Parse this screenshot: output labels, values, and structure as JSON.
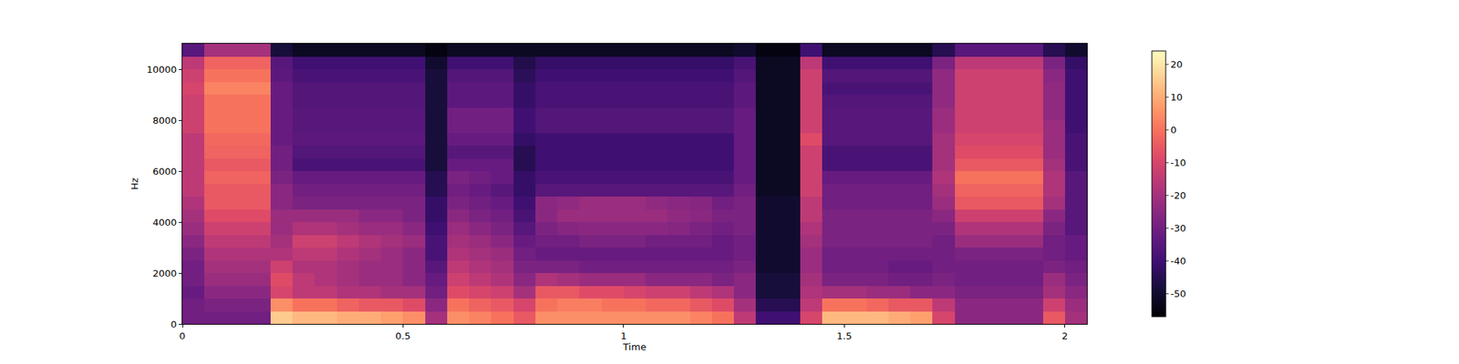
{
  "chart_data": {
    "type": "heatmap",
    "x_label": "Time",
    "y_label": "Hz",
    "xlim": [
      0,
      2.05
    ],
    "xticks": [
      0,
      0.5,
      1,
      1.5,
      2
    ],
    "ylim": [
      0,
      11000
    ],
    "yticks": [
      0,
      2000,
      4000,
      6000,
      8000,
      10000
    ],
    "colorbar": {
      "range": [
        -57,
        24
      ],
      "ticks": [
        -50,
        -40,
        -30,
        -20,
        -10,
        0,
        10,
        20
      ]
    },
    "x": [
      0.025,
      0.075,
      0.125,
      0.175,
      0.225,
      0.275,
      0.325,
      0.375,
      0.425,
      0.475,
      0.525,
      0.575,
      0.625,
      0.675,
      0.725,
      0.775,
      0.825,
      0.875,
      0.925,
      0.975,
      1.025,
      1.075,
      1.125,
      1.175,
      1.225,
      1.275,
      1.325,
      1.375,
      1.425,
      1.475,
      1.525,
      1.575,
      1.625,
      1.675,
      1.725,
      1.775,
      1.825,
      1.875,
      1.925,
      1.975,
      2.025
    ],
    "y": [
      250,
      750,
      1250,
      1750,
      2250,
      2750,
      3250,
      3750,
      4250,
      4750,
      5250,
      5750,
      6250,
      6750,
      7250,
      7750,
      8250,
      8750,
      9250,
      9750,
      10250,
      10750
    ],
    "cells": [
      [
        -30,
        -30,
        -30,
        -30,
        15,
        12,
        12,
        10,
        10,
        8,
        5,
        -20,
        5,
        3,
        0,
        -5,
        5,
        5,
        5,
        5,
        5,
        5,
        5,
        3,
        0,
        -15,
        -40,
        -40,
        -10,
        12,
        12,
        12,
        10,
        8,
        -10,
        -25,
        -25,
        -25,
        -25,
        -5,
        -20
      ],
      [
        -30,
        -28,
        -28,
        -28,
        5,
        0,
        0,
        -3,
        -5,
        -5,
        -8,
        -25,
        0,
        -3,
        -5,
        -10,
        0,
        2,
        2,
        0,
        0,
        -2,
        -2,
        -5,
        -8,
        -20,
        -45,
        -45,
        -15,
        0,
        0,
        -2,
        -5,
        -5,
        -15,
        -25,
        -25,
        -25,
        -25,
        -12,
        -22
      ],
      [
        -32,
        -25,
        -25,
        -25,
        -10,
        -15,
        -15,
        -18,
        -18,
        -20,
        -20,
        -30,
        -8,
        -10,
        -12,
        -20,
        -5,
        -5,
        -8,
        -8,
        -10,
        -12,
        -12,
        -15,
        -18,
        -25,
        -48,
        -48,
        -18,
        -20,
        -20,
        -22,
        -22,
        -25,
        -25,
        -28,
        -28,
        -28,
        -28,
        -20,
        -25
      ],
      [
        -30,
        -22,
        -22,
        -22,
        -8,
        -15,
        -18,
        -20,
        -22,
        -22,
        -25,
        -32,
        -12,
        -15,
        -18,
        -25,
        -18,
        -20,
        -22,
        -22,
        -22,
        -25,
        -25,
        -25,
        -28,
        -25,
        -48,
        -48,
        -20,
        -28,
        -28,
        -28,
        -30,
        -30,
        -28,
        -30,
        -30,
        -30,
        -30,
        -22,
        -28
      ],
      [
        -30,
        -20,
        -20,
        -20,
        -12,
        -18,
        -18,
        -20,
        -22,
        -22,
        -25,
        -35,
        -15,
        -18,
        -20,
        -28,
        -28,
        -28,
        -30,
        -30,
        -30,
        -30,
        -30,
        -30,
        -30,
        -28,
        -50,
        -50,
        -22,
        -30,
        -30,
        -30,
        -32,
        -32,
        -30,
        -30,
        -30,
        -30,
        -30,
        -28,
        -30
      ],
      [
        -28,
        -18,
        -18,
        -18,
        -18,
        -15,
        -15,
        -18,
        -20,
        -22,
        -25,
        -38,
        -18,
        -20,
        -22,
        -30,
        -32,
        -32,
        -32,
        -32,
        -32,
        -32,
        -32,
        -32,
        -32,
        -30,
        -50,
        -50,
        -22,
        -30,
        -30,
        -30,
        -30,
        -30,
        -30,
        -28,
        -28,
        -28,
        -28,
        -30,
        -32
      ],
      [
        -25,
        -15,
        -15,
        -15,
        -20,
        -12,
        -12,
        -15,
        -18,
        -20,
        -22,
        -38,
        -20,
        -22,
        -25,
        -32,
        -30,
        -30,
        -28,
        -28,
        -28,
        -30,
        -30,
        -30,
        -32,
        -30,
        -50,
        -50,
        -20,
        -28,
        -28,
        -28,
        -28,
        -28,
        -30,
        -22,
        -22,
        -22,
        -22,
        -30,
        -32
      ],
      [
        -22,
        -12,
        -12,
        -12,
        -22,
        -18,
        -18,
        -20,
        -22,
        -22,
        -25,
        -40,
        -22,
        -25,
        -28,
        -35,
        -28,
        -26,
        -25,
        -25,
        -25,
        -25,
        -26,
        -28,
        -30,
        -28,
        -50,
        -50,
        -18,
        -28,
        -28,
        -28,
        -28,
        -28,
        -28,
        -18,
        -18,
        -18,
        -18,
        -28,
        -35
      ],
      [
        -20,
        -8,
        -8,
        -8,
        -22,
        -22,
        -22,
        -22,
        -25,
        -25,
        -28,
        -42,
        -25,
        -28,
        -30,
        -38,
        -25,
        -22,
        -22,
        -22,
        -22,
        -22,
        -24,
        -25,
        -28,
        -28,
        -50,
        -50,
        -15,
        -28,
        -28,
        -28,
        -28,
        -28,
        -25,
        -12,
        -12,
        -12,
        -12,
        -25,
        -35
      ],
      [
        -18,
        -5,
        -5,
        -5,
        -25,
        -28,
        -28,
        -28,
        -28,
        -28,
        -28,
        -42,
        -28,
        -30,
        -32,
        -40,
        -25,
        -24,
        -22,
        -22,
        -22,
        -24,
        -25,
        -26,
        -30,
        -28,
        -50,
        -50,
        -15,
        -30,
        -30,
        -30,
        -30,
        -30,
        -22,
        -5,
        -5,
        -5,
        -5,
        -20,
        -35
      ],
      [
        -15,
        -5,
        -5,
        -5,
        -25,
        -30,
        -30,
        -30,
        -30,
        -30,
        -30,
        -45,
        -30,
        -32,
        -35,
        -42,
        -35,
        -35,
        -35,
        -35,
        -35,
        -35,
        -35,
        -35,
        -35,
        -30,
        -52,
        -52,
        -12,
        -30,
        -30,
        -30,
        -30,
        -30,
        -20,
        -3,
        -3,
        -3,
        -3,
        -18,
        -35
      ],
      [
        -15,
        -3,
        -3,
        -3,
        -28,
        -32,
        -32,
        -32,
        -32,
        -32,
        -32,
        -45,
        -28,
        -30,
        -32,
        -42,
        -38,
        -38,
        -38,
        -38,
        -38,
        -38,
        -38,
        -38,
        -38,
        -32,
        -52,
        -52,
        -12,
        -32,
        -32,
        -32,
        -32,
        -32,
        -18,
        0,
        0,
        0,
        0,
        -18,
        -35
      ],
      [
        -15,
        -5,
        -5,
        -5,
        -30,
        -38,
        -38,
        -38,
        -38,
        -38,
        -38,
        -48,
        -32,
        -32,
        -32,
        -45,
        -40,
        -40,
        -40,
        -40,
        -40,
        -40,
        -40,
        -40,
        -40,
        -32,
        -52,
        -52,
        -12,
        -38,
        -38,
        -38,
        -38,
        -38,
        -20,
        -5,
        -5,
        -5,
        -5,
        -20,
        -38
      ],
      [
        -15,
        -3,
        -3,
        -3,
        -30,
        -36,
        -36,
        -36,
        -36,
        -36,
        -36,
        -48,
        -35,
        -35,
        -35,
        -45,
        -40,
        -40,
        -40,
        -40,
        -40,
        -40,
        -40,
        -40,
        -40,
        -32,
        -52,
        -52,
        -12,
        -38,
        -38,
        -38,
        -38,
        -38,
        -20,
        -8,
        -8,
        -8,
        -8,
        -22,
        -38
      ],
      [
        -15,
        -2,
        -2,
        -2,
        -32,
        -34,
        -34,
        -34,
        -34,
        -34,
        -34,
        -48,
        -32,
        -32,
        -32,
        -42,
        -40,
        -40,
        -40,
        -40,
        -40,
        -40,
        -40,
        -40,
        -40,
        -32,
        -52,
        -52,
        -8,
        -35,
        -35,
        -35,
        -35,
        -35,
        -20,
        -10,
        -10,
        -10,
        -10,
        -22,
        -38
      ],
      [
        -12,
        0,
        0,
        0,
        -32,
        -35,
        -35,
        -35,
        -35,
        -35,
        -35,
        -48,
        -30,
        -30,
        -30,
        -40,
        -36,
        -36,
        -36,
        -36,
        -36,
        -36,
        -36,
        -36,
        -36,
        -32,
        -52,
        -52,
        -12,
        -35,
        -35,
        -35,
        -35,
        -35,
        -22,
        -12,
        -12,
        -12,
        -12,
        -22,
        -40
      ],
      [
        -12,
        0,
        0,
        0,
        -32,
        -35,
        -35,
        -35,
        -35,
        -35,
        -35,
        -48,
        -30,
        -30,
        -30,
        -40,
        -36,
        -36,
        -36,
        -36,
        -36,
        -36,
        -36,
        -36,
        -36,
        -32,
        -52,
        -52,
        -12,
        -35,
        -35,
        -35,
        -35,
        -35,
        -22,
        -12,
        -12,
        -12,
        -12,
        -24,
        -40
      ],
      [
        -12,
        0,
        0,
        0,
        -32,
        -36,
        -36,
        -36,
        -36,
        -36,
        -36,
        -48,
        -34,
        -34,
        -34,
        -42,
        -38,
        -38,
        -38,
        -38,
        -38,
        -38,
        -38,
        -38,
        -38,
        -34,
        -52,
        -52,
        -12,
        -36,
        -36,
        -36,
        -36,
        -36,
        -24,
        -12,
        -12,
        -12,
        -12,
        -24,
        -40
      ],
      [
        -10,
        3,
        3,
        3,
        -32,
        -36,
        -36,
        -36,
        -36,
        -36,
        -36,
        -48,
        -34,
        -34,
        -34,
        -42,
        -38,
        -38,
        -38,
        -38,
        -38,
        -38,
        -38,
        -38,
        -38,
        -34,
        -52,
        -52,
        -12,
        -38,
        -38,
        -38,
        -38,
        -38,
        -24,
        -12,
        -12,
        -12,
        -12,
        -24,
        -40
      ],
      [
        -12,
        0,
        0,
        0,
        -34,
        -38,
        -38,
        -38,
        -38,
        -38,
        -38,
        -48,
        -36,
        -36,
        -36,
        -44,
        -40,
        -40,
        -40,
        -40,
        -40,
        -40,
        -40,
        -40,
        -40,
        -36,
        -52,
        -52,
        -12,
        -36,
        -36,
        -36,
        -36,
        -36,
        -24,
        -12,
        -12,
        -12,
        -12,
        -25,
        -40
      ],
      [
        -15,
        -3,
        -3,
        -3,
        -35,
        -40,
        -40,
        -40,
        -40,
        -40,
        -40,
        -50,
        -40,
        -40,
        -40,
        -46,
        -42,
        -42,
        -42,
        -42,
        -42,
        -42,
        -42,
        -42,
        -42,
        -38,
        -52,
        -52,
        -15,
        -40,
        -40,
        -40,
        -40,
        -40,
        -28,
        -15,
        -15,
        -15,
        -15,
        -28,
        -42
      ],
      [
        -35,
        -20,
        -20,
        -20,
        -48,
        -52,
        -52,
        -52,
        -52,
        -52,
        -52,
        -55,
        -52,
        -52,
        -52,
        -52,
        -52,
        -52,
        -52,
        -52,
        -52,
        -52,
        -52,
        -52,
        -52,
        -50,
        -55,
        -55,
        -40,
        -52,
        -52,
        -52,
        -52,
        -52,
        -45,
        -35,
        -35,
        -35,
        -35,
        -45,
        -50
      ]
    ]
  }
}
